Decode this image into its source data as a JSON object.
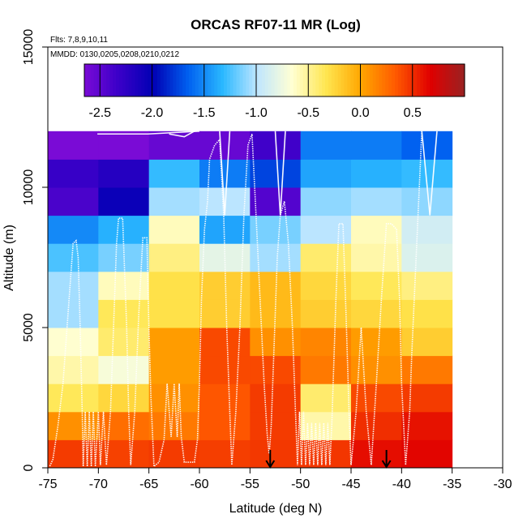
{
  "chart_data": {
    "type": "heatmap",
    "title": "ORCAS RF07-11 MR (Log)",
    "annotations": [
      "Flts: 7,8,9,10,11",
      "MMDD: 0130,0205,0208,0210,0212"
    ],
    "xlabel": "Latitude (deg N)",
    "ylabel": "Altitude (m)",
    "xlim": [
      -75,
      -30
    ],
    "ylim": [
      0,
      15000
    ],
    "xticks": [
      -75,
      -70,
      -65,
      -60,
      -55,
      -50,
      -45,
      -40,
      -35,
      -30
    ],
    "yticks": [
      0,
      5000,
      10000,
      15000
    ],
    "x_bins": [
      -75,
      -70,
      -65,
      -60,
      -55,
      -50,
      -45,
      -40,
      -35
    ],
    "y_bins": [
      0,
      1000,
      2000,
      3000,
      4000,
      5000,
      6000,
      7000,
      8000,
      9000,
      10000,
      11000,
      12000
    ],
    "colorbar": {
      "min": -2.65,
      "max": 1.0,
      "ticks": [
        -2.5,
        -2.0,
        -1.5,
        -1.0,
        -0.5,
        0.0,
        0.5
      ],
      "tick_labels": [
        "-2.5",
        "-2.0",
        "-1.5",
        "-1.0",
        "-0.5",
        "0.0",
        "0.5"
      ],
      "colors": [
        "#7a0bd6",
        "#3a00c8",
        "#0000b4",
        "#0060f0",
        "#2ab8ff",
        "#bfe6ff",
        "#ffffd4",
        "#ffe650",
        "#ffa600",
        "#ff5a00",
        "#e00000",
        "#9a2222"
      ]
    },
    "values": [
      [
        0.45,
        0.43,
        0.45,
        0.44,
        0.46,
        0.47,
        0.62,
        0.65
      ],
      [
        0.1,
        0.25,
        0.2,
        0.35,
        0.45,
        -0.55,
        0.5,
        0.6
      ],
      [
        -0.35,
        -0.25,
        0.1,
        0.35,
        0.45,
        -0.4,
        0.4,
        0.45
      ],
      [
        -0.55,
        -0.7,
        0.05,
        0.4,
        0.4,
        0.2,
        0.1,
        0.2
      ],
      [
        -0.65,
        -0.4,
        0.05,
        0.4,
        0.1,
        0.15,
        0.05,
        -0.2
      ],
      [
        -1.05,
        -0.35,
        -0.3,
        -0.2,
        -0.1,
        -0.2,
        -0.25,
        -0.3
      ],
      [
        -1.05,
        -0.6,
        -0.3,
        -0.2,
        -0.1,
        -0.25,
        -0.35,
        -0.45
      ],
      [
        -1.25,
        -1.15,
        -0.45,
        -0.8,
        -1.05,
        -0.4,
        -0.55,
        -0.85
      ],
      [
        -1.5,
        -1.35,
        -0.6,
        -1.4,
        -1.15,
        -1.0,
        -0.6,
        -0.9
      ],
      [
        -2.4,
        -2.05,
        -1.05,
        -1.0,
        -2.45,
        -1.1,
        -1.05,
        -1.1
      ],
      [
        -2.3,
        -2.2,
        -1.3,
        -1.55,
        -1.75,
        -1.4,
        -1.35,
        -1.3
      ],
      [
        -2.8,
        -2.75,
        -2.55,
        -2.55,
        -2.35,
        -1.55,
        -1.55,
        -1.65
      ]
    ],
    "track_points": [
      [
        -74.8,
        60
      ],
      [
        -74.5,
        300
      ],
      [
        -74,
        1500
      ],
      [
        -73.5,
        3000
      ],
      [
        -73,
        5500
      ],
      [
        -72.5,
        8000
      ],
      [
        -72.2,
        8100
      ],
      [
        -72,
        7500
      ],
      [
        -71.8,
        5000
      ],
      [
        -71.6,
        2000
      ],
      [
        -71.5,
        50
      ],
      [
        -71.3,
        2000
      ],
      [
        -71.1,
        50
      ],
      [
        -70.9,
        2000
      ],
      [
        -70.7,
        50
      ],
      [
        -70.5,
        2000
      ],
      [
        -70.3,
        50
      ],
      [
        -70,
        2000
      ],
      [
        -69.8,
        100
      ],
      [
        -69.5,
        2000
      ],
      [
        -69.2,
        100
      ],
      [
        -68.8,
        2000
      ],
      [
        -68.5,
        5000
      ],
      [
        -68.2,
        8000
      ],
      [
        -68,
        8900
      ],
      [
        -67.6,
        8900
      ],
      [
        -67.2,
        5000
      ],
      [
        -67,
        2000
      ],
      [
        -66.8,
        100
      ],
      [
        -66.4,
        2000
      ],
      [
        -66,
        5500
      ],
      [
        -65.6,
        8200
      ],
      [
        -65.2,
        8200
      ],
      [
        -65,
        5000
      ],
      [
        -64.8,
        2500
      ],
      [
        -64.5,
        50
      ],
      [
        -64,
        200
      ],
      [
        -63.5,
        1000
      ],
      [
        -63.2,
        3000
      ],
      [
        -62.8,
        1100
      ],
      [
        -62.5,
        3000
      ],
      [
        -62.2,
        1100
      ],
      [
        -62,
        3000
      ],
      [
        -61.8,
        1100
      ],
      [
        -61.5,
        200
      ],
      [
        -61,
        200
      ],
      [
        -60.5,
        200
      ],
      [
        -60.2,
        1000
      ],
      [
        -60,
        3000
      ],
      [
        -59.8,
        6000
      ],
      [
        -59.5,
        8500
      ],
      [
        -59.2,
        9500
      ],
      [
        -59,
        11000
      ],
      [
        -58.5,
        11500
      ],
      [
        -58,
        11700
      ],
      [
        -57.6,
        9000
      ],
      [
        -57.3,
        5000
      ],
      [
        -57,
        2000
      ],
      [
        -56.8,
        100
      ],
      [
        -56.4,
        2000
      ],
      [
        -56,
        5000
      ],
      [
        -55.6,
        9000
      ],
      [
        -55.2,
        11500
      ],
      [
        -54.8,
        11900
      ],
      [
        -54.4,
        9000
      ],
      [
        -54,
        6000
      ],
      [
        -53.6,
        3000
      ],
      [
        -53.3,
        1200
      ],
      [
        -53.1,
        500
      ],
      [
        -52.9,
        1500
      ],
      [
        -52.6,
        4500
      ],
      [
        -52.3,
        7500
      ],
      [
        -52,
        9000
      ],
      [
        -51.6,
        9500
      ],
      [
        -51.2,
        8000
      ],
      [
        -50.8,
        5000
      ],
      [
        -50.5,
        2000
      ],
      [
        -50.3,
        100
      ],
      [
        -50.1,
        2000
      ],
      [
        -49.9,
        100
      ],
      [
        -49.7,
        2000
      ],
      [
        -49.5,
        100
      ],
      [
        -49.3,
        1600
      ],
      [
        -49.1,
        100
      ],
      [
        -48.9,
        1600
      ],
      [
        -48.7,
        100
      ],
      [
        -48.5,
        1600
      ],
      [
        -48.3,
        100
      ],
      [
        -48.1,
        1600
      ],
      [
        -47.9,
        100
      ],
      [
        -47.7,
        1600
      ],
      [
        -47.5,
        100
      ],
      [
        -47.3,
        1600
      ],
      [
        -47.1,
        100
      ],
      [
        -46.9,
        1600
      ],
      [
        -46.5,
        6000
      ],
      [
        -46.2,
        8700
      ],
      [
        -45.8,
        8700
      ],
      [
        -45.5,
        5500
      ],
      [
        -45.2,
        2000
      ],
      [
        -45,
        100
      ],
      [
        -44.5,
        2000
      ],
      [
        -44,
        5000
      ],
      [
        -43.5,
        2000
      ],
      [
        -43,
        100
      ],
      [
        -42.5,
        3000
      ],
      [
        -42,
        6000
      ],
      [
        -41.5,
        8700
      ],
      [
        -41,
        8700
      ],
      [
        -40.5,
        8500
      ],
      [
        -40.2,
        6000
      ],
      [
        -40,
        3000
      ],
      [
        -39.6,
        100
      ],
      [
        -39.2,
        2000
      ],
      [
        -39,
        4000
      ],
      [
        -38.5,
        8000
      ],
      [
        -38,
        12000
      ]
    ],
    "track_segments": [
      [
        [
          -70.1,
          11900
        ],
        [
          -65.1,
          11900
        ],
        [
          -60,
          12000
        ]
      ],
      [
        [
          -63,
          11900
        ],
        [
          -61.5,
          11800
        ],
        [
          -60.5,
          12000
        ]
      ],
      [
        [
          -58,
          12000
        ],
        [
          -57.5,
          9000
        ],
        [
          -57,
          12000
        ]
      ],
      [
        [
          -52.5,
          12000
        ],
        [
          -52,
          9000
        ],
        [
          -51.5,
          12000
        ]
      ],
      [
        [
          -38,
          12000
        ],
        [
          -37.2,
          9000
        ],
        [
          -36.5,
          12000
        ]
      ]
    ],
    "markers": [
      {
        "type": "arrow",
        "x": -53.0
      },
      {
        "type": "arrow",
        "x": -41.5
      }
    ]
  }
}
